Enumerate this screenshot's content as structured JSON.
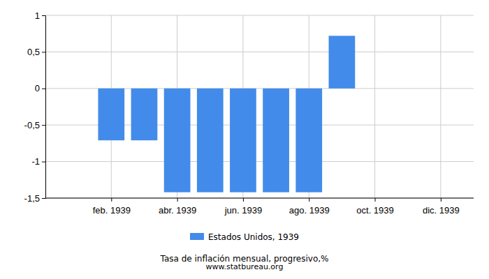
{
  "chart_data": {
    "type": "bar",
    "title": "Tasa de inflación mensual, progresivo,%",
    "subtitle": "www.statbureau.org",
    "categories": [
      null,
      "feb. 1939",
      null,
      "abr. 1939",
      null,
      "jun. 1939",
      null,
      "ago. 1939",
      null,
      "oct. 1939",
      null,
      "dic. 1939"
    ],
    "series": [
      {
        "name": "Estados Unidos, 1939",
        "color": "#428bea",
        "values": [
          null,
          -0.71,
          -0.71,
          -1.42,
          -1.42,
          -1.42,
          -1.42,
          -1.42,
          0.72,
          null,
          null,
          null
        ]
      }
    ],
    "ylim": [
      -1.5,
      1
    ],
    "yticks": [
      {
        "value": -1.5,
        "label": "-1,5"
      },
      -1,
      {
        "value": -0.5,
        "label": "-0,5"
      },
      0,
      {
        "value": 0.5,
        "label": "0,5"
      },
      1
    ],
    "grid": true,
    "legend": "bottom"
  }
}
